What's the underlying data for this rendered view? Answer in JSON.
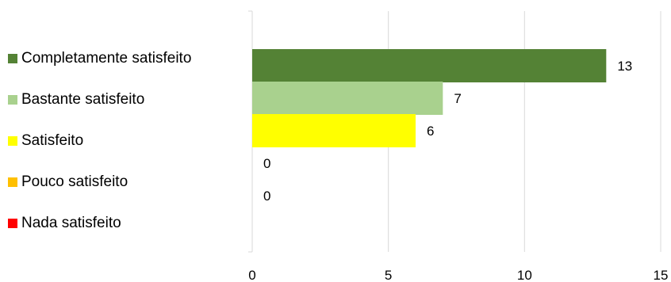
{
  "chart_data": {
    "type": "bar",
    "orientation": "horizontal",
    "categories": [
      "Completamente satisfeito",
      "Bastante satisfeito",
      "Satisfeito",
      "Pouco satisfeito",
      "Nada satisfeito"
    ],
    "values": [
      13,
      7,
      6,
      0,
      0
    ],
    "colors": [
      "#548235",
      "#a9d18e",
      "#ffff00",
      "#ffc000",
      "#ff0000"
    ],
    "xlim": [
      0,
      15
    ],
    "xticks": [
      0,
      5,
      10,
      15
    ],
    "grid": true,
    "legend_position": "left",
    "title": "",
    "xlabel": "",
    "ylabel": ""
  }
}
